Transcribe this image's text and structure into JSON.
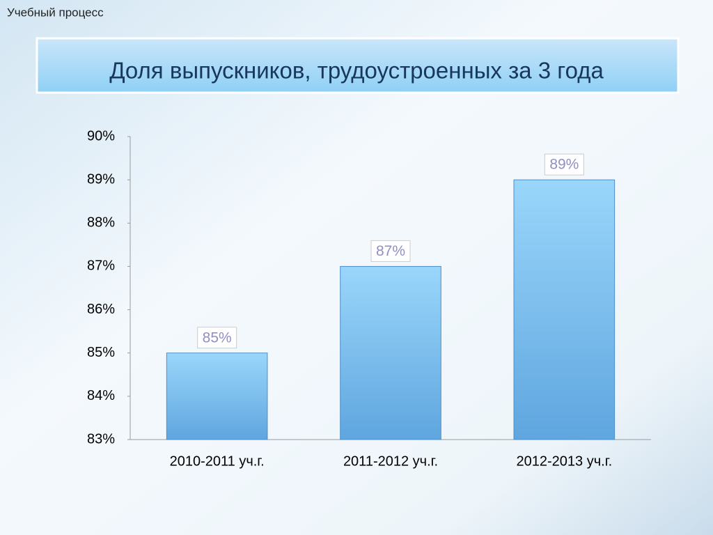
{
  "section": "Учебный процесс",
  "chart_data": {
    "type": "bar",
    "title": "Доля выпускников, трудоустроенных за 3 года",
    "categories": [
      "2010-2011 уч.г.",
      "2011-2012 уч.г.",
      "2012-2013 уч.г."
    ],
    "values": [
      85,
      87,
      89
    ],
    "value_labels": [
      "85%",
      "87%",
      "89%"
    ],
    "color": "#8ccdf5",
    "ylim": [
      83,
      90
    ],
    "yticks": [
      {
        "value": 83,
        "label": "83%"
      },
      {
        "value": 84,
        "label": "84%"
      },
      {
        "value": 85,
        "label": "85%"
      },
      {
        "value": 86,
        "label": "86%"
      },
      {
        "value": 87,
        "label": "87%"
      },
      {
        "value": 88,
        "label": "88%"
      },
      {
        "value": 89,
        "label": "89%"
      },
      {
        "value": 90,
        "label": "90%"
      }
    ],
    "grid": false
  }
}
